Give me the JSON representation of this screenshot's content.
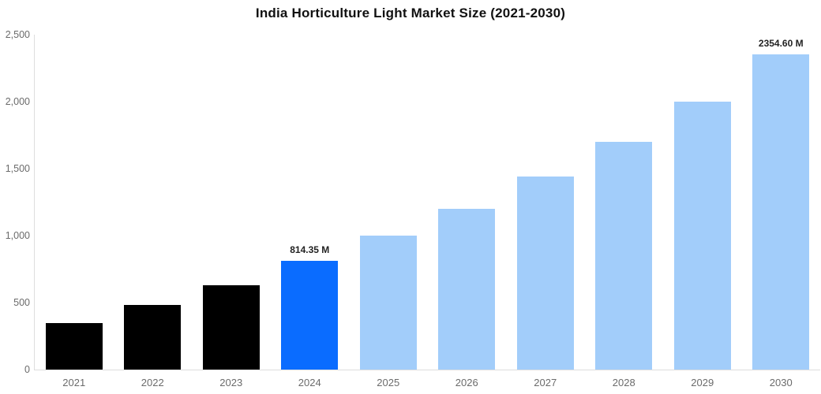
{
  "chart_data": {
    "type": "bar",
    "title": "India Horticulture Light Market Size (2021-2030)",
    "categories": [
      "2021",
      "2022",
      "2023",
      "2024",
      "2025",
      "2026",
      "2027",
      "2028",
      "2029",
      "2030"
    ],
    "values": [
      350,
      480,
      630,
      814.35,
      1000,
      1200,
      1440,
      1700,
      2000,
      2354.6
    ],
    "point_labels": [
      "",
      "",
      "",
      "814.35 M",
      "",
      "",
      "",
      "",
      "",
      "2354.60 M"
    ],
    "bar_colors": [
      "#000000",
      "#000000",
      "#000000",
      "#0a6cff",
      "#a2cdfa",
      "#a2cdfa",
      "#a2cdfa",
      "#a2cdfa",
      "#a2cdfa",
      "#a2cdfa"
    ],
    "xlabel": "",
    "ylabel": "",
    "ylim": [
      0,
      2500
    ],
    "ytick_labels": [
      "0",
      "500",
      "1,000",
      "1,500",
      "2,000",
      "2,500"
    ],
    "grid": false,
    "legend": false,
    "axis_color": "#dddddd",
    "tick_label_color": "#6b6b6b",
    "value_label_color": "#222222",
    "title_color": "#111111",
    "units": "M"
  }
}
